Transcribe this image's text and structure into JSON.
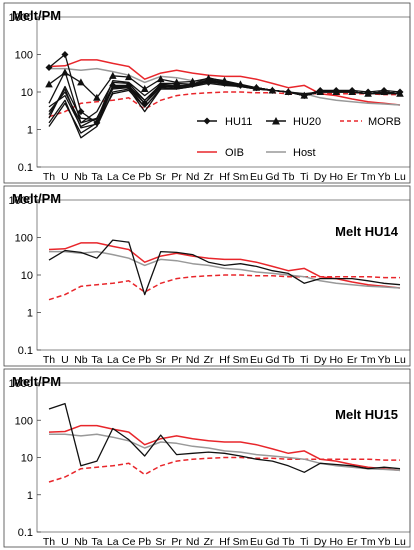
{
  "chart_data": [
    {
      "type": "line",
      "title": "Melt/PM",
      "subtitle": "",
      "y_scale": "log",
      "ylim": [
        0.1,
        1000
      ],
      "y_ticks": [
        "0.1",
        "1",
        "10",
        "100",
        "1000"
      ],
      "grid": false,
      "legend_position": "bottom-right inside plot",
      "categories": [
        "Th",
        "U",
        "Nb",
        "Ta",
        "La",
        "Ce",
        "Pb",
        "Sr",
        "Pr",
        "Nd",
        "Zr",
        "Hf",
        "Sm",
        "Eu",
        "Gd",
        "Tb",
        "Ti",
        "Dy",
        "Ho",
        "Er",
        "Tm",
        "Yb",
        "Lu"
      ],
      "series": [
        {
          "name": "OIB",
          "color": "#e8262b",
          "dash": "solid",
          "marker": "none",
          "in_legend": true,
          "values": [
            48,
            50,
            72,
            72,
            58,
            48,
            22,
            32,
            38,
            32,
            28,
            26,
            26,
            22,
            17,
            13,
            15,
            9,
            8,
            6.5,
            5.5,
            5,
            4.5
          ]
        },
        {
          "name": "MORB",
          "color": "#e8262b",
          "dash": "dashed",
          "marker": "none",
          "in_legend": true,
          "values": [
            2.2,
            3,
            5,
            5.5,
            6,
            7,
            3.5,
            6,
            8,
            9,
            9.5,
            10,
            10,
            9.5,
            9.5,
            9,
            9,
            9,
            9,
            9,
            9,
            8.5,
            8.5
          ]
        },
        {
          "name": "Host",
          "color": "#999999",
          "dash": "solid",
          "marker": "none",
          "in_legend": true,
          "values": [
            42,
            42,
            38,
            42,
            35,
            28,
            18,
            26,
            24,
            20,
            18,
            15,
            14,
            12,
            11,
            10,
            9,
            7,
            6,
            5.5,
            5,
            4.8,
            4.5
          ]
        },
        {
          "name": "HU11",
          "color": "#111111",
          "dash": "solid",
          "marker": "diamond",
          "in_legend": true,
          "values": [
            45,
            100,
            3,
            1.5,
            15,
            15,
            5,
            15,
            14,
            16,
            18,
            17,
            15,
            13,
            11,
            10,
            8,
            11,
            11,
            11,
            10,
            11,
            10
          ]
        },
        {
          "name": "HU20",
          "color": "#111111",
          "dash": "solid",
          "marker": "triangle",
          "in_legend": true,
          "values": [
            16,
            33,
            18,
            7,
            27,
            25,
            12,
            22,
            18,
            19,
            23,
            20,
            16,
            13,
            11,
            10,
            8,
            10,
            10,
            10,
            9,
            10,
            9
          ]
        },
        {
          "name": "",
          "color": "#111111",
          "dash": "solid",
          "marker": "none",
          "in_legend": false,
          "values": [
            3,
            10,
            1.5,
            2,
            12,
            13,
            4,
            12,
            12,
            14,
            20,
            17,
            15,
            12,
            11,
            10,
            8,
            10,
            10,
            10,
            9,
            10,
            9
          ]
        },
        {
          "name": "",
          "color": "#111111",
          "dash": "solid",
          "marker": "none",
          "in_legend": false,
          "values": [
            1.5,
            6,
            0.6,
            1.2,
            10,
            12,
            3,
            12,
            12,
            14,
            19,
            16,
            14,
            12,
            11,
            10,
            8,
            10,
            10,
            10,
            9,
            10,
            9
          ]
        },
        {
          "name": "",
          "color": "#111111",
          "dash": "solid",
          "marker": "none",
          "in_legend": false,
          "values": [
            1.2,
            5,
            0.8,
            1.5,
            9,
            11,
            4,
            12,
            13,
            14,
            17,
            15,
            14,
            12,
            11,
            10,
            8,
            11,
            10,
            10,
            9,
            9,
            9
          ]
        },
        {
          "name": "",
          "color": "#111111",
          "dash": "solid",
          "marker": "none",
          "in_legend": false,
          "values": [
            4,
            8,
            1.2,
            2,
            14,
            14,
            6,
            14,
            14,
            15,
            21,
            18,
            15,
            13,
            11,
            10,
            8,
            10,
            10,
            10,
            9,
            10,
            9
          ]
        },
        {
          "name": "",
          "color": "#111111",
          "dash": "solid",
          "marker": "none",
          "in_legend": false,
          "values": [
            2,
            14,
            2,
            1.8,
            20,
            18,
            8,
            17,
            17,
            16,
            24,
            19,
            15,
            13,
            11,
            10,
            9,
            10,
            10,
            10,
            9,
            10,
            9
          ]
        },
        {
          "name": "",
          "color": "#111111",
          "dash": "solid",
          "marker": "none",
          "in_legend": false,
          "values": [
            5,
            35,
            1.5,
            3,
            18,
            17,
            6,
            16,
            15,
            15,
            22,
            18,
            15,
            13,
            11,
            10,
            8,
            10,
            10,
            10,
            9,
            10,
            9
          ]
        },
        {
          "name": "",
          "color": "#111111",
          "dash": "solid",
          "marker": "none",
          "in_legend": false,
          "values": [
            2.5,
            12,
            1.1,
            1.4,
            13,
            13,
            5,
            13,
            14,
            15,
            20,
            17,
            15,
            13,
            11,
            10,
            8,
            10,
            11,
            10,
            9,
            10,
            9
          ]
        }
      ]
    },
    {
      "type": "line",
      "title": "Melt/PM",
      "subtitle": "Melt HU14",
      "y_scale": "log",
      "ylim": [
        0.1,
        1000
      ],
      "y_ticks": [
        "0.1",
        "1",
        "10",
        "100",
        "1000"
      ],
      "grid": false,
      "categories": [
        "Th",
        "U",
        "Nb",
        "Ta",
        "La",
        "Ce",
        "Pb",
        "Sr",
        "Pr",
        "Nd",
        "Zr",
        "Hf",
        "Sm",
        "Eu",
        "Gd",
        "Tb",
        "Ti",
        "Dy",
        "Ho",
        "Er",
        "Tm",
        "Yb",
        "Lu"
      ],
      "series": [
        {
          "name": "OIB",
          "color": "#e8262b",
          "dash": "solid",
          "values": [
            48,
            50,
            72,
            72,
            58,
            48,
            22,
            32,
            38,
            32,
            28,
            26,
            26,
            22,
            17,
            13,
            15,
            9,
            8,
            6.5,
            5.5,
            5,
            4.5
          ]
        },
        {
          "name": "MORB",
          "color": "#e8262b",
          "dash": "dashed",
          "values": [
            2.2,
            3,
            5,
            5.5,
            6,
            7,
            3.5,
            6,
            8,
            9,
            9.5,
            10,
            10,
            9.5,
            9.5,
            9,
            9,
            9,
            9,
            9,
            9,
            8.5,
            8.5
          ]
        },
        {
          "name": "Host",
          "color": "#999999",
          "dash": "solid",
          "values": [
            42,
            42,
            38,
            42,
            35,
            28,
            18,
            26,
            24,
            20,
            18,
            15,
            14,
            12,
            11,
            10,
            9,
            7,
            6,
            5.5,
            5,
            4.8,
            4.5
          ]
        },
        {
          "name": "HU14",
          "color": "#111111",
          "dash": "solid",
          "values": [
            25,
            45,
            40,
            28,
            85,
            75,
            3,
            42,
            40,
            35,
            22,
            18,
            20,
            17,
            13,
            11,
            6,
            8,
            8,
            8,
            7,
            6,
            5.5
          ]
        }
      ]
    },
    {
      "type": "line",
      "title": "Melt/PM",
      "subtitle": "Melt HU15",
      "y_scale": "log",
      "ylim": [
        0.1,
        1000
      ],
      "y_ticks": [
        "0.1",
        "1",
        "10",
        "100",
        "1000"
      ],
      "grid": false,
      "categories": [
        "Th",
        "U",
        "Nb",
        "Ta",
        "La",
        "Ce",
        "Pb",
        "Sr",
        "Pr",
        "Nd",
        "Zr",
        "Hf",
        "Sm",
        "Eu",
        "Gd",
        "Tb",
        "Ti",
        "Dy",
        "Ho",
        "Er",
        "Tm",
        "Yb",
        "Lu"
      ],
      "series": [
        {
          "name": "OIB",
          "color": "#e8262b",
          "dash": "solid",
          "values": [
            48,
            50,
            72,
            72,
            58,
            48,
            22,
            32,
            38,
            32,
            28,
            26,
            26,
            22,
            17,
            13,
            15,
            9,
            8,
            6.5,
            5.5,
            5,
            4.5
          ]
        },
        {
          "name": "MORB",
          "color": "#e8262b",
          "dash": "dashed",
          "values": [
            2.2,
            3,
            5,
            5.5,
            6,
            7,
            3.5,
            6,
            8,
            9,
            9.5,
            10,
            10,
            9.5,
            9.5,
            9,
            9,
            9,
            9,
            9,
            9,
            8.5,
            8.5
          ]
        },
        {
          "name": "Host",
          "color": "#999999",
          "dash": "solid",
          "values": [
            42,
            42,
            38,
            42,
            35,
            28,
            18,
            26,
            24,
            20,
            18,
            15,
            14,
            12,
            11,
            10,
            9,
            7,
            6,
            5.5,
            5,
            4.8,
            4.5
          ]
        },
        {
          "name": "HU15",
          "color": "#111111",
          "dash": "solid",
          "values": [
            200,
            280,
            6,
            8,
            60,
            30,
            11,
            40,
            12,
            13,
            14,
            13,
            11,
            9,
            8,
            6,
            4,
            7,
            6.5,
            6,
            5,
            5.5,
            5
          ]
        }
      ]
    }
  ]
}
